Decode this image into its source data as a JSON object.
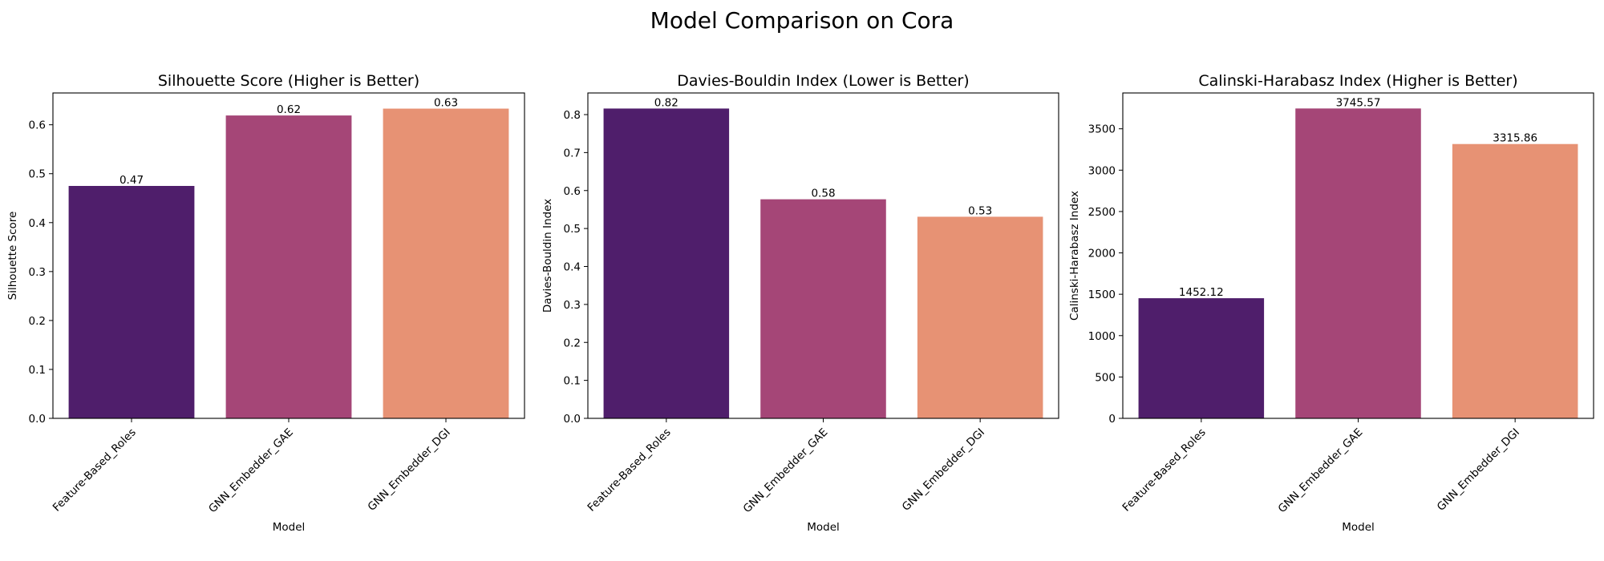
{
  "figure": {
    "suptitle": "Model Comparison on Cora"
  },
  "chart_data": [
    {
      "type": "bar",
      "title": "Silhouette Score (Higher is Better)",
      "xlabel": "Model",
      "ylabel": "Silhouette Score",
      "categories": [
        "Feature-Based_Roles",
        "GNN_Embedder_GAE",
        "GNN_Embedder_DGI"
      ],
      "values": [
        0.475,
        0.619,
        0.633
      ],
      "value_labels": [
        "0.47",
        "0.62",
        "0.63"
      ],
      "ylim": [
        0,
        0.665
      ],
      "yticks": [
        0.0,
        0.1,
        0.2,
        0.3,
        0.4,
        0.5,
        0.6
      ],
      "ytick_labels": [
        "0.0",
        "0.1",
        "0.2",
        "0.3",
        "0.4",
        "0.5",
        "0.6"
      ],
      "colors": [
        "#4f1e6b",
        "#a54677",
        "#e79274"
      ],
      "grid": false,
      "legend": "none"
    },
    {
      "type": "bar",
      "title": "Davies-Bouldin Index (Lower is Better)",
      "xlabel": "Model",
      "ylabel": "Davies-Bouldin Index",
      "categories": [
        "Feature-Based_Roles",
        "GNN_Embedder_GAE",
        "GNN_Embedder_DGI"
      ],
      "values": [
        0.816,
        0.577,
        0.531
      ],
      "value_labels": [
        "0.82",
        "0.58",
        "0.53"
      ],
      "ylim": [
        0,
        0.857
      ],
      "yticks": [
        0.0,
        0.1,
        0.2,
        0.3,
        0.4,
        0.5,
        0.6,
        0.7,
        0.8
      ],
      "ytick_labels": [
        "0.0",
        "0.1",
        "0.2",
        "0.3",
        "0.4",
        "0.5",
        "0.6",
        "0.7",
        "0.8"
      ],
      "colors": [
        "#4f1e6b",
        "#a54677",
        "#e79274"
      ],
      "grid": false,
      "legend": "none"
    },
    {
      "type": "bar",
      "title": "Calinski-Harabasz Index (Higher is Better)",
      "xlabel": "Model",
      "ylabel": "Calinski-Harabasz Index",
      "categories": [
        "Feature-Based_Roles",
        "GNN_Embedder_GAE",
        "GNN_Embedder_DGI"
      ],
      "values": [
        1452.12,
        3745.57,
        3315.86
      ],
      "value_labels": [
        "1452.12",
        "3745.57",
        "3315.86"
      ],
      "ylim": [
        0,
        3933
      ],
      "yticks": [
        0,
        500,
        1000,
        1500,
        2000,
        2500,
        3000,
        3500
      ],
      "ytick_labels": [
        "0",
        "500",
        "1000",
        "1500",
        "2000",
        "2500",
        "3000",
        "3500"
      ],
      "colors": [
        "#4f1e6b",
        "#a54677",
        "#e79274"
      ],
      "grid": false,
      "legend": "none"
    }
  ]
}
